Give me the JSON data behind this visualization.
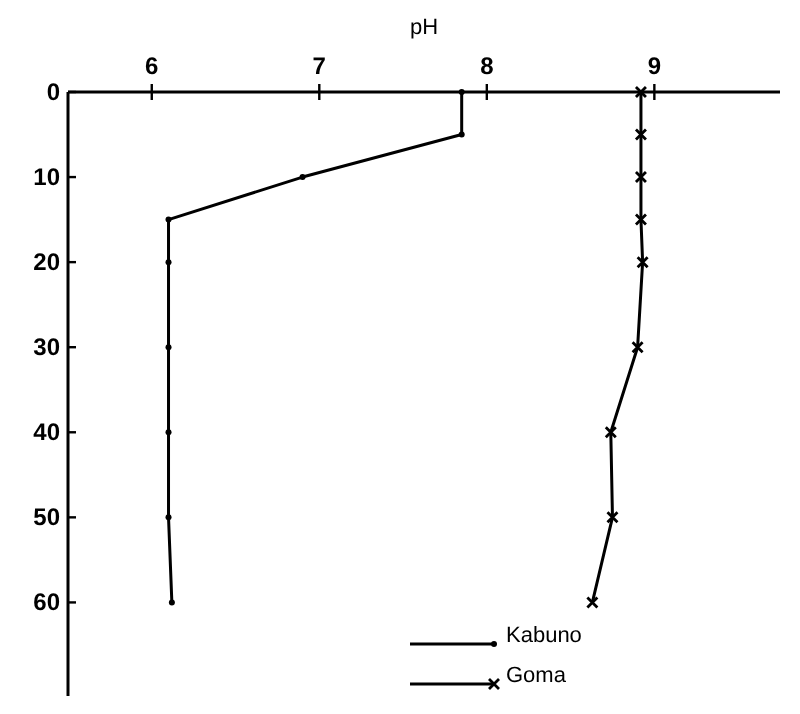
{
  "chart_data": {
    "type": "line",
    "xlabel": "pH",
    "xlim": [
      5.5,
      9.75
    ],
    "xticks": [
      6,
      7,
      8,
      9
    ],
    "ylim": [
      71,
      0
    ],
    "yticks": [
      0,
      10,
      20,
      30,
      40,
      50,
      60
    ],
    "grid": false,
    "legend": "bottom",
    "line_style": "solid",
    "series": [
      {
        "name": "Kabuno",
        "color": "#000000",
        "marker": "circle",
        "x": [
          7.85,
          7.85,
          6.9,
          6.1,
          6.1,
          6.1,
          6.1,
          6.1,
          6.12
        ],
        "values": [
          0,
          5,
          10,
          15,
          20,
          30,
          40,
          50,
          60
        ]
      },
      {
        "name": "Goma",
        "color": "#000000",
        "marker": "cross",
        "x": [
          8.92,
          8.92,
          8.92,
          8.92,
          8.93,
          8.9,
          8.74,
          8.75,
          8.63
        ],
        "values": [
          0,
          5,
          10,
          15,
          20,
          30,
          40,
          50,
          60
        ]
      }
    ]
  }
}
